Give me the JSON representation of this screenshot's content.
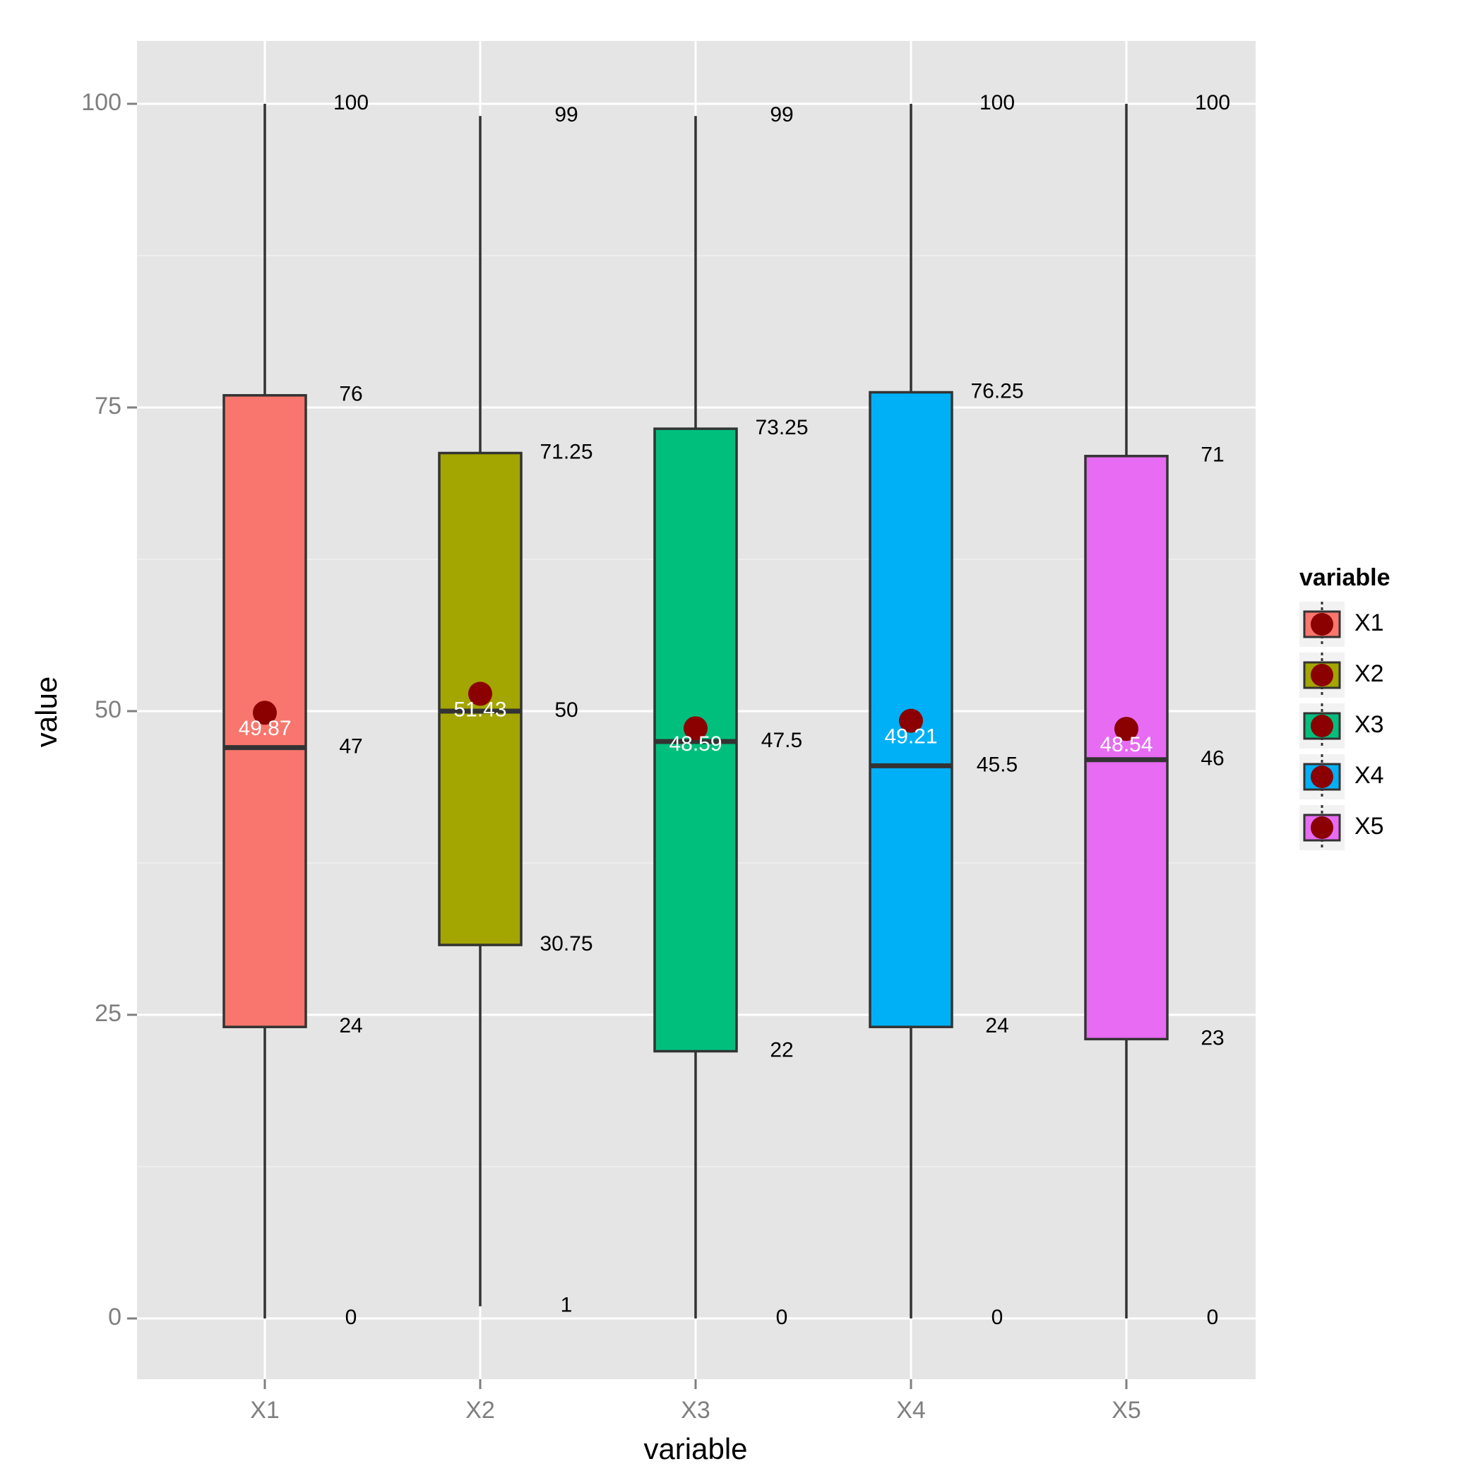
{
  "chart_data": {
    "type": "boxplot",
    "xlabel": "variable",
    "ylabel": "value",
    "ylim": [
      -5,
      105
    ],
    "yticks": [
      0,
      25,
      50,
      75,
      100
    ],
    "ytick_labels": [
      "0",
      "25",
      "50",
      "75",
      "100"
    ],
    "grid": true,
    "legend": {
      "title": "variable",
      "position": "right"
    },
    "categories": [
      "X1",
      "X2",
      "X3",
      "X4",
      "X5"
    ],
    "series": [
      {
        "name": "X1",
        "color": "#F8766D",
        "min": 0,
        "q1": 24,
        "median": 47,
        "q3": 76,
        "max": 100,
        "mean": 49.87,
        "labels": {
          "min": "0",
          "q1": "24",
          "median": "47",
          "q3": "76",
          "max": "100",
          "mean": "49.87"
        }
      },
      {
        "name": "X2",
        "color": "#A3A500",
        "min": 1,
        "q1": 30.75,
        "median": 50,
        "q3": 71.25,
        "max": 99,
        "mean": 51.43,
        "labels": {
          "min": "1",
          "q1": "30.75",
          "median": "50",
          "q3": "71.25",
          "max": "99",
          "mean": "51.43"
        }
      },
      {
        "name": "X3",
        "color": "#00BF7D",
        "min": 0,
        "q1": 22,
        "median": 47.5,
        "q3": 73.25,
        "max": 99,
        "mean": 48.59,
        "labels": {
          "min": "0",
          "q1": "22",
          "median": "47.5",
          "q3": "73.25",
          "max": "99",
          "mean": "48.59"
        }
      },
      {
        "name": "X4",
        "color": "#00B0F6",
        "min": 0,
        "q1": 24,
        "median": 45.5,
        "q3": 76.25,
        "max": 100,
        "mean": 49.21,
        "labels": {
          "min": "0",
          "q1": "24",
          "median": "45.5",
          "q3": "76.25",
          "max": "100",
          "mean": "49.21"
        }
      },
      {
        "name": "X5",
        "color": "#E76BF3",
        "min": 0,
        "q1": 23,
        "median": 46,
        "q3": 71,
        "max": 100,
        "mean": 48.54,
        "labels": {
          "min": "0",
          "q1": "23",
          "median": "46",
          "q3": "71",
          "max": "100",
          "mean": "48.54"
        }
      }
    ],
    "mean_marker_color": "#8B0000",
    "panel_background": "#E5E5E5",
    "grid_color": "#FFFFFF"
  }
}
